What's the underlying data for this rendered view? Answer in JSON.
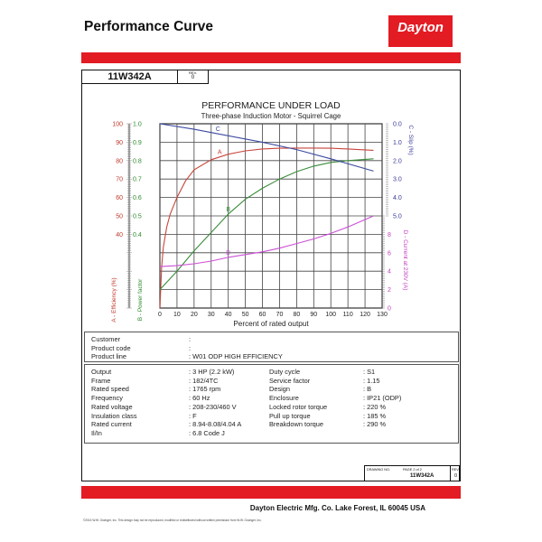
{
  "header": {
    "title": "Performance Curve",
    "logo_text": "Dayton"
  },
  "doc": {
    "drawing_number": "11W342A",
    "rev_label": "REV.",
    "rev": "0"
  },
  "chart_data": {
    "type": "line",
    "title": "PERFORMANCE UNDER LOAD",
    "subtitle": "Three-phase Induction Motor - Squirrel Cage",
    "xlabel": "Percent of rated output",
    "xlim": [
      0,
      130
    ],
    "xticks": [
      0,
      10,
      20,
      30,
      40,
      50,
      60,
      70,
      80,
      90,
      100,
      110,
      120,
      130
    ],
    "grid": true,
    "axes": {
      "efficiency": {
        "label": "A - Efficiency (%)",
        "range": [
          0,
          100
        ],
        "ticks": [
          40,
          50,
          60,
          70,
          80,
          90,
          100
        ],
        "color": "#c0392b"
      },
      "power_factor": {
        "label": "B - Power factor",
        "range": [
          0,
          1
        ],
        "ticks": [
          "0.4",
          "0.5",
          "0.6",
          "0.7",
          "0.8",
          "0.9",
          "1.0"
        ],
        "color": "#2e8b2e"
      },
      "slip": {
        "label": "C - Slip (%)",
        "range": [
          0,
          5
        ],
        "inverted": true,
        "ticks": [
          "0.0",
          "1.0",
          "2.0",
          "3.0",
          "4.0",
          "5.0"
        ],
        "color": "#3a3a9a"
      },
      "current": {
        "label": "D - Current at 230V (A)",
        "range": [
          0,
          10
        ],
        "ticks": [
          0,
          2,
          4,
          6,
          8
        ],
        "color": "#c040c0"
      }
    },
    "series": [
      {
        "name": "A",
        "axis": "efficiency",
        "color": "#c8453c",
        "label_x": 35,
        "x": [
          0,
          1,
          2,
          4,
          6,
          10,
          15,
          20,
          30,
          40,
          50,
          60,
          70,
          80,
          90,
          100,
          110,
          125
        ],
        "y": [
          0,
          22,
          33,
          44,
          51,
          60,
          69,
          75,
          80.5,
          83.5,
          85.3,
          86.3,
          86.7,
          86.8,
          86.8,
          86.7,
          86.3,
          85.6
        ]
      },
      {
        "name": "B",
        "axis": "power_factor",
        "color": "#3a8c3a",
        "label_x": 40,
        "x": [
          0,
          10,
          20,
          30,
          40,
          50,
          60,
          70,
          80,
          90,
          100,
          110,
          125
        ],
        "y": [
          0.1,
          0.2,
          0.31,
          0.41,
          0.51,
          0.59,
          0.65,
          0.7,
          0.74,
          0.77,
          0.79,
          0.8,
          0.81
        ]
      },
      {
        "name": "C",
        "axis": "slip",
        "color": "#3b4aa0",
        "label_x": 34,
        "x": [
          0,
          20,
          40,
          60,
          80,
          100,
          125
        ],
        "y": [
          0,
          0.3,
          0.65,
          1.0,
          1.4,
          1.9,
          2.57
        ]
      },
      {
        "name": "D",
        "axis": "current",
        "color": "#cc4fd6",
        "label_x": 40,
        "x": [
          0,
          10,
          20,
          30,
          40,
          50,
          60,
          70,
          80,
          90,
          100,
          110,
          125
        ],
        "y": [
          4.5,
          4.6,
          4.8,
          5.1,
          5.5,
          5.8,
          6.1,
          6.5,
          7.0,
          7.5,
          8.1,
          8.8,
          10.0
        ]
      }
    ]
  },
  "customer": [
    {
      "label": "Customer",
      "value": ""
    },
    {
      "label": "Product code",
      "value": ""
    },
    {
      "label": "Product line",
      "value": "W01 ODP HIGH EFFICIENCY"
    }
  ],
  "specs_left": [
    {
      "label": "Output",
      "value": "3 HP (2.2 kW)"
    },
    {
      "label": "Frame",
      "value": "182/4TC"
    },
    {
      "label": "Rated speed",
      "value": "1765 rpm"
    },
    {
      "label": "Frequency",
      "value": "60 Hz"
    },
    {
      "label": "Rated voltage",
      "value": "208-230/460 V"
    },
    {
      "label": "Insulation class",
      "value": "F"
    },
    {
      "label": "Rated current",
      "value": "8.94-8.08/4.04 A"
    },
    {
      "label": "Il/In",
      "value": "6.8   Code J"
    }
  ],
  "specs_right": [
    {
      "label": "Duty cycle",
      "value": "S1"
    },
    {
      "label": "Service factor",
      "value": "1.15"
    },
    {
      "label": "Design",
      "value": "B"
    },
    {
      "label": "Enclosure",
      "value": "IP21 (ODP)"
    },
    {
      "label": "Locked rotor torque",
      "value": "220 %"
    },
    {
      "label": "Pull up torque",
      "value": "185 %"
    },
    {
      "label": "Breakdown torque",
      "value": "290 %"
    }
  ],
  "drawing_box": {
    "drawing_no_label": "DRAWING NO.",
    "page": "PAGE 2  of  2",
    "number": "11W342A",
    "rev_label": "REV.",
    "rev": "0"
  },
  "footer": {
    "company": "Dayton Electric Mfg. Co.  Lake Forest, IL  60045  USA",
    "copyright": "©2015 W.W. Grainger, Inc.   This design may not be reproduced, modified or redistributed without written permission from W.W. Grainger, Inc."
  },
  "colors": {
    "brand_red": "#e31b23"
  }
}
